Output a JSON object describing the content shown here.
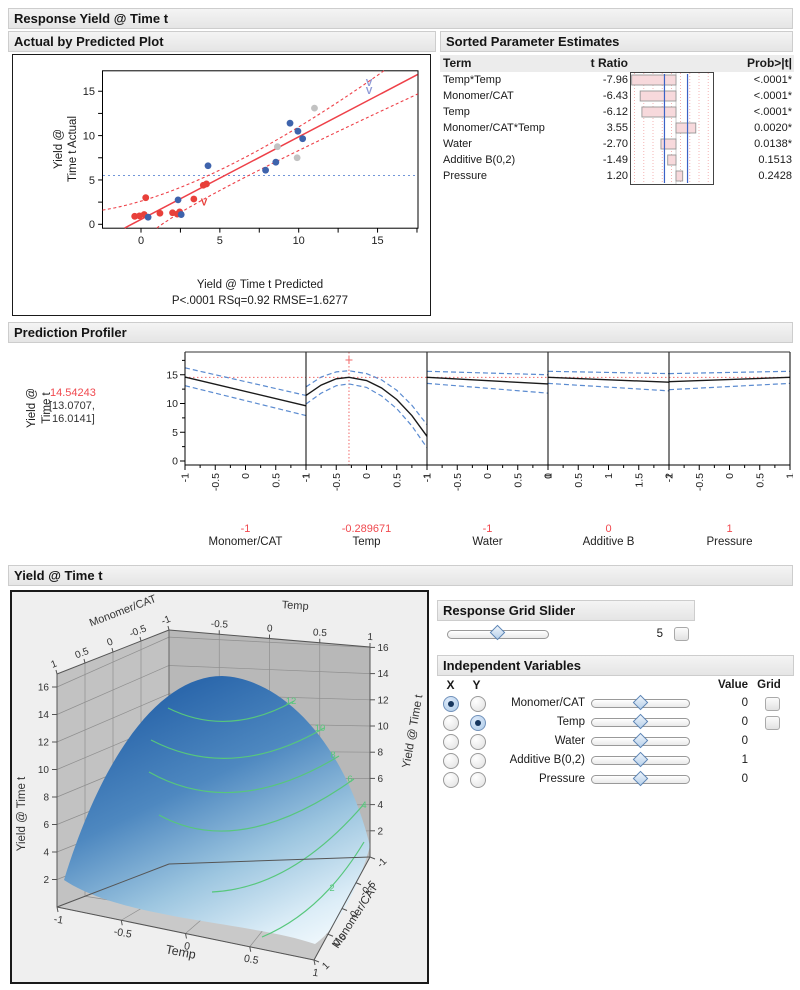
{
  "app": {
    "response_header": "Response Yield @ Time t",
    "abp_header": "Actual by Predicted Plot",
    "spe_header": "Sorted Parameter Estimates",
    "profiler_header": "Prediction Profiler",
    "surface_header": "Yield @ Time t",
    "grid_slider_header": "Response Grid Slider",
    "indep_header": "Independent Variables"
  },
  "colors": {
    "red": "#ee4048",
    "red_dotted": "#f06a6a",
    "blue_point": "#3e63ac",
    "gray_point": "#c2c2c2",
    "blue_dash": "#5b8bd0",
    "mean_blue": "#7096d8",
    "bar_fill": "#f7d9dc",
    "bar_edge": "#979797",
    "crit_blue": "#3b62c6",
    "green_contour": "#57c77c",
    "lavender": "#8d99d6",
    "black_line": "#1a1a1a"
  },
  "sorted_params": {
    "col_term": "Term",
    "col_t": "t Ratio",
    "col_prob": "Prob>|t|",
    "rows": [
      {
        "term": "Temp*Temp",
        "t": "-7.96",
        "prob": "<.0001*"
      },
      {
        "term": "Monomer/CAT",
        "t": "-6.43",
        "prob": "<.0001*"
      },
      {
        "term": "Temp",
        "t": "-6.12",
        "prob": "<.0001*"
      },
      {
        "term": "Monomer/CAT*Temp",
        "t": "3.55",
        "prob": "0.0020*"
      },
      {
        "term": "Water",
        "t": "-2.70",
        "prob": "0.0138*"
      },
      {
        "term": "Additive B(0,2)",
        "t": "-1.49",
        "prob": "0.1513"
      },
      {
        "term": "Pressure",
        "t": "1.20",
        "prob": "0.2428"
      }
    ]
  },
  "profiler": {
    "ylabel1": "Yield @",
    "ylabel2": "Time t",
    "value": "14.54243",
    "ci1": "[13.0707,",
    "ci2": "16.0141]"
  },
  "grid_slider": {
    "value": "5"
  },
  "indep_vars": {
    "col_x": "X",
    "col_y": "Y",
    "col_value": "Value",
    "col_grid": "Grid",
    "rows": [
      {
        "name": "Monomer/CAT",
        "value": "0",
        "x": true,
        "y": false,
        "grid": true
      },
      {
        "name": "Temp",
        "value": "0",
        "x": false,
        "y": true,
        "grid": true
      },
      {
        "name": "Water",
        "value": "0",
        "x": false,
        "y": false,
        "grid": false
      },
      {
        "name": "Additive B(0,2)",
        "value": "1",
        "x": false,
        "y": false,
        "grid": false
      },
      {
        "name": "Pressure",
        "value": "0",
        "x": false,
        "y": false,
        "grid": false
      }
    ]
  },
  "chart_data": [
    {
      "id": "actual_by_predicted",
      "type": "scatter",
      "xlabel": "Yield @ Time t Predicted",
      "ylabel_line1": "Yield @",
      "ylabel_line2": "Time t Actual",
      "caption": "P<.0001 RSq=0.92 RMSE=1.6277",
      "xlim": [
        -2.44,
        17.56
      ],
      "ylim": [
        -0.42,
        17.3
      ],
      "x_ticks": [
        0,
        5,
        10,
        15
      ],
      "y_ticks": [
        0,
        5,
        10,
        15
      ],
      "minor_step": 2.5,
      "mean_line_y": 5.5,
      "fit_line": "y = x",
      "conf_upper": [
        [
          -2.44,
          1.6
        ],
        [
          5.5,
          6.55
        ],
        [
          15.4,
          17.3
        ]
      ],
      "conf_lower": [
        [
          1.0,
          -0.42
        ],
        [
          6.6,
          5.3
        ],
        [
          17.56,
          14.7
        ]
      ],
      "series": [
        {
          "name": "group-red",
          "color": "#e8403a",
          "points": [
            [
              -0.4,
              0.9
            ],
            [
              -0.1,
              0.95
            ],
            [
              0.2,
              1.1
            ],
            [
              0.3,
              3.0
            ],
            [
              1.2,
              1.25
            ],
            [
              2.0,
              1.3
            ],
            [
              2.3,
              1.15
            ],
            [
              2.45,
              1.4
            ],
            [
              3.35,
              2.85
            ],
            [
              3.95,
              4.4
            ],
            [
              4.15,
              4.55
            ]
          ]
        },
        {
          "name": "group-blue",
          "color": "#3e63ac",
          "points": [
            [
              0.45,
              0.8
            ],
            [
              2.35,
              2.75
            ],
            [
              2.55,
              1.1
            ],
            [
              4.25,
              6.6
            ],
            [
              7.9,
              6.1
            ],
            [
              8.55,
              7.0
            ],
            [
              9.45,
              11.4
            ],
            [
              9.95,
              10.5
            ],
            [
              10.25,
              9.65
            ]
          ]
        },
        {
          "name": "group-gray",
          "color": "#c2c2c2",
          "points": [
            [
              8.65,
              8.75
            ],
            [
              9.9,
              7.5
            ],
            [
              11.0,
              13.1
            ]
          ]
        }
      ],
      "v_markers": [
        {
          "x": 14.46,
          "y": 15.95,
          "color": "#8d99d6"
        },
        {
          "x": 14.46,
          "y": 15.05,
          "color": "#8d99d6"
        },
        {
          "x": 4.0,
          "y": 2.45,
          "color": "#e8403a"
        }
      ]
    },
    {
      "id": "prediction_profiler",
      "type": "line",
      "y_ticks": [
        0,
        5,
        10,
        15
      ],
      "ylim": [
        -0.7,
        19
      ],
      "ref_value": 14.54,
      "panels": [
        {
          "name": "Monomer/CAT",
          "value": "-1",
          "xlim": [
            -1,
            1
          ],
          "x_ticks": [
            -1,
            -0.5,
            0,
            0.5,
            1
          ],
          "cursor": -1,
          "line": [
            [
              -1,
              14.6
            ],
            [
              1,
              9.6
            ]
          ],
          "upper": [
            [
              -1,
              16.2
            ],
            [
              1,
              11.4
            ]
          ],
          "lower": [
            [
              -1,
              13.1
            ],
            [
              1,
              7.9
            ]
          ]
        },
        {
          "name": "Temp",
          "value": "-0.289671",
          "xlim": [
            -1,
            1
          ],
          "x_ticks": [
            -1,
            -0.5,
            0,
            0.5,
            1
          ],
          "cursor": -0.289671,
          "line": [
            [
              -1,
              11.4
            ],
            [
              -0.75,
              13.2
            ],
            [
              -0.5,
              14.3
            ],
            [
              -0.29,
              14.55
            ],
            [
              0,
              14.0
            ],
            [
              0.25,
              12.7
            ],
            [
              0.5,
              10.7
            ],
            [
              0.75,
              7.9
            ],
            [
              1,
              4.3
            ]
          ],
          "upper": [
            [
              -1,
              12.9
            ],
            [
              -0.75,
              14.6
            ],
            [
              -0.5,
              15.5
            ],
            [
              -0.29,
              15.7
            ],
            [
              0,
              15.2
            ],
            [
              0.25,
              14.1
            ],
            [
              0.5,
              12.3
            ],
            [
              0.75,
              9.7
            ],
            [
              1,
              6.3
            ]
          ],
          "lower": [
            [
              -1,
              9.9
            ],
            [
              -0.75,
              11.8
            ],
            [
              -0.5,
              13.1
            ],
            [
              -0.29,
              13.4
            ],
            [
              0,
              12.8
            ],
            [
              0.25,
              11.3
            ],
            [
              0.5,
              9.1
            ],
            [
              0.75,
              6.1
            ],
            [
              1,
              2.3
            ]
          ]
        },
        {
          "name": "Water",
          "value": "-1",
          "xlim": [
            -1,
            1
          ],
          "x_ticks": [
            -1,
            -0.5,
            0,
            0.5,
            1
          ],
          "cursor": -1,
          "line": [
            [
              -1,
              14.55
            ],
            [
              1,
              13.4
            ]
          ],
          "upper": [
            [
              -1,
              15.6
            ],
            [
              1,
              15.0
            ]
          ],
          "lower": [
            [
              -1,
              13.5
            ],
            [
              1,
              11.8
            ]
          ]
        },
        {
          "name": "Additive B",
          "value": "0",
          "xlim": [
            0,
            2
          ],
          "x_ticks": [
            0,
            0.5,
            1,
            1.5,
            2
          ],
          "cursor": 0,
          "line": [
            [
              0,
              14.55
            ],
            [
              2,
              13.7
            ]
          ],
          "upper": [
            [
              0,
              15.6
            ],
            [
              2,
              15.2
            ]
          ],
          "lower": [
            [
              0,
              13.5
            ],
            [
              2,
              12.2
            ]
          ]
        },
        {
          "name": "Pressure",
          "value": "1",
          "xlim": [
            -1,
            1
          ],
          "x_ticks": [
            -1,
            -0.5,
            0,
            0.5,
            1
          ],
          "cursor": 1,
          "line": [
            [
              -1,
              13.8
            ],
            [
              1,
              14.55
            ]
          ],
          "upper": [
            [
              -1,
              15.2
            ],
            [
              1,
              15.6
            ]
          ],
          "lower": [
            [
              -1,
              12.4
            ],
            [
              1,
              13.5
            ]
          ]
        }
      ]
    },
    {
      "id": "t_ratio_pareto",
      "type": "bar",
      "categories": [
        "Temp*Temp",
        "Monomer/CAT",
        "Temp",
        "Monomer/CAT*Temp",
        "Water",
        "Additive B(0,2)",
        "Pressure"
      ],
      "values": [
        -7.96,
        -6.43,
        -6.12,
        3.55,
        -2.7,
        -1.49,
        1.2
      ],
      "xlim": [
        -8.3,
        6.8
      ],
      "crit_lines": [
        -2.07,
        2.07
      ]
    },
    {
      "id": "surface_plot",
      "type": "surface",
      "zlabel": "Yield @ Time t",
      "top_left_axis": {
        "label": "Monomer/CAT",
        "ticks": [
          1,
          0.5,
          0,
          -0.5,
          -1
        ]
      },
      "top_right_axis": {
        "label": "Temp",
        "ticks": [
          -0.5,
          0,
          0.5,
          1
        ]
      },
      "bottom_left_axis": {
        "label": "Temp",
        "ticks": [
          -1,
          -0.5,
          0,
          0.5,
          1
        ]
      },
      "bottom_right_axis": {
        "label": "Monomer/CAT",
        "ticks": [
          -1,
          -0.5,
          0,
          0.5,
          1
        ]
      },
      "z_ticks": [
        2,
        4,
        6,
        8,
        10,
        12,
        14,
        16
      ],
      "contour_labels": [
        12,
        10,
        8,
        6,
        4,
        2
      ],
      "surface_range": {
        "x": [
          -1,
          1
        ],
        "y": [
          -1,
          1
        ],
        "z_peak": 14.55
      }
    }
  ]
}
